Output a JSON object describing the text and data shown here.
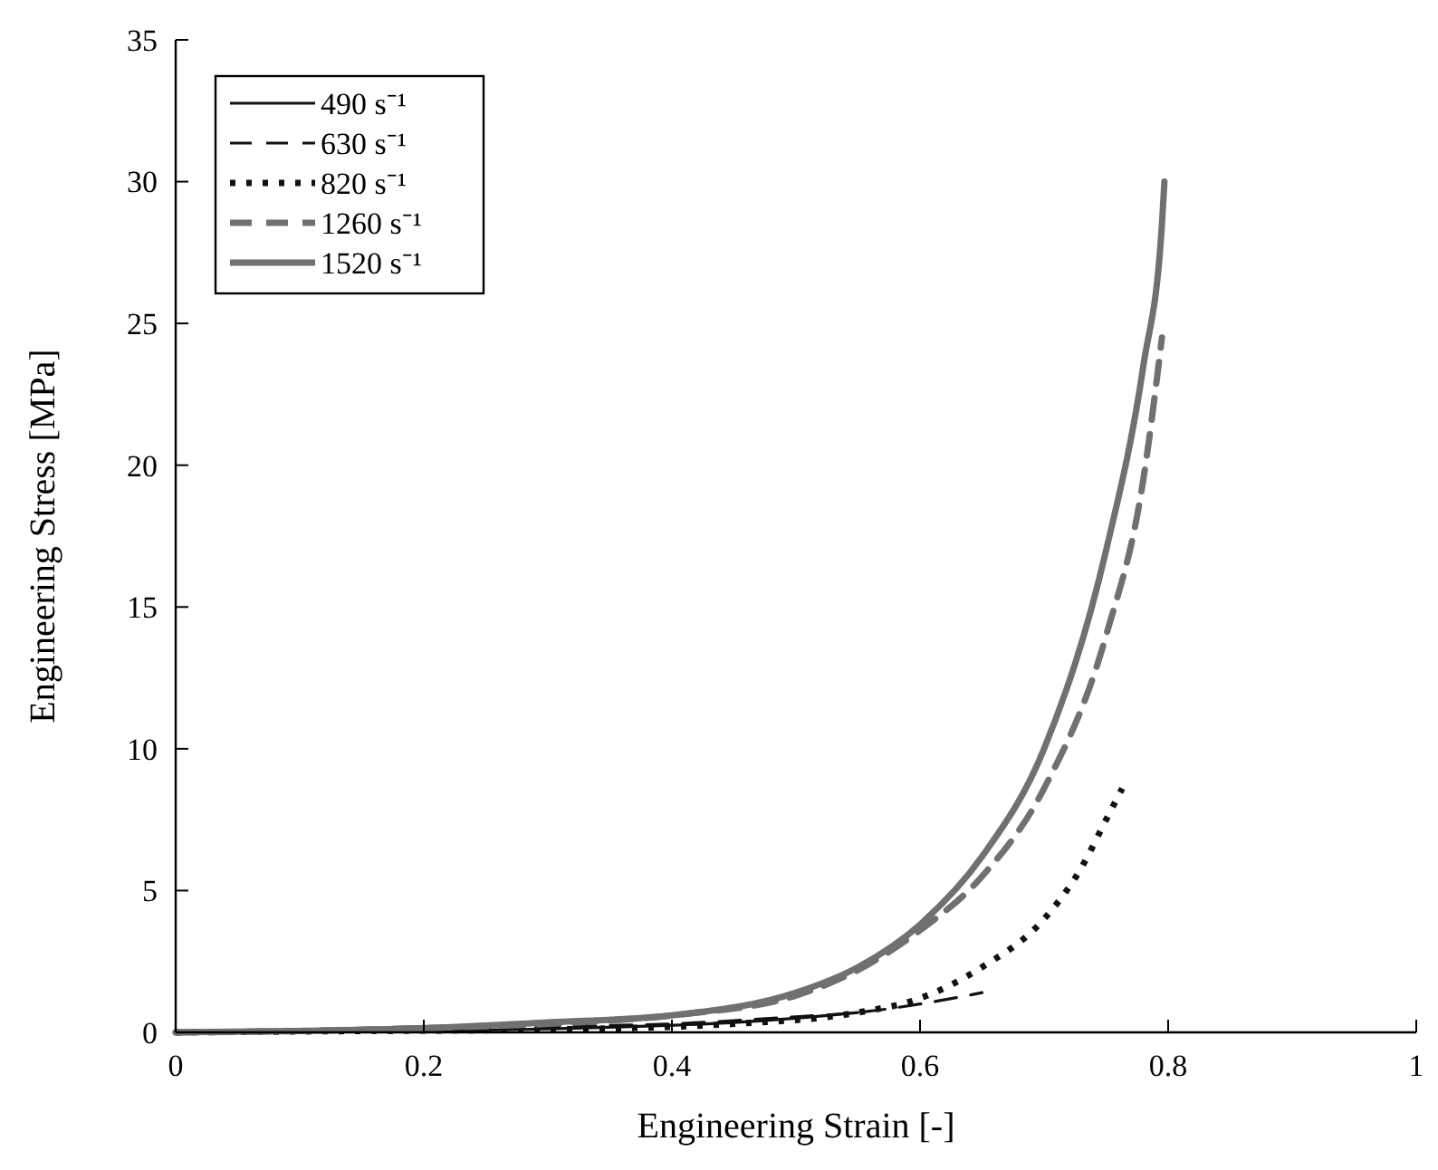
{
  "chart_data": {
    "type": "line",
    "xlabel": "Engineering Strain [-]",
    "ylabel": "Engineering Stress [MPa]",
    "xlim": [
      0,
      1
    ],
    "ylim": [
      0,
      35
    ],
    "xticks": [
      0,
      0.2,
      0.4,
      0.6,
      0.8,
      1
    ],
    "yticks": [
      0,
      5,
      10,
      15,
      20,
      25,
      30,
      35
    ],
    "grid": false,
    "legend": "top left",
    "series": [
      {
        "name": "490 s⁻¹",
        "color": "#111111",
        "line_style": "solid",
        "x": [
          0,
          0.1,
          0.2,
          0.3,
          0.4,
          0.45,
          0.5,
          0.55
        ],
        "values": [
          0,
          0.03,
          0.05,
          0.12,
          0.25,
          0.35,
          0.5,
          0.7
        ]
      },
      {
        "name": "630 s⁻¹",
        "color": "#111111",
        "line_style": "dashed",
        "x": [
          0,
          0.1,
          0.2,
          0.3,
          0.4,
          0.5,
          0.55,
          0.6,
          0.65
        ],
        "values": [
          0,
          0.05,
          0.1,
          0.2,
          0.3,
          0.55,
          0.7,
          1.0,
          1.4
        ]
      },
      {
        "name": "820 s⁻¹",
        "color": "#111111",
        "line_style": "dotted",
        "x": [
          0,
          0.15,
          0.3,
          0.45,
          0.55,
          0.6,
          0.65,
          0.7,
          0.73,
          0.75,
          0.763
        ],
        "values": [
          0,
          0.05,
          0.1,
          0.3,
          0.7,
          1.2,
          2.3,
          4,
          5.8,
          7.5,
          8.6
        ]
      },
      {
        "name": "1260 s⁻¹",
        "color": "#707070",
        "line_style": "dashed",
        "x": [
          0,
          0.1,
          0.2,
          0.3,
          0.4,
          0.5,
          0.55,
          0.6,
          0.65,
          0.7,
          0.75,
          0.78,
          0.795
        ],
        "values": [
          0,
          0.05,
          0.15,
          0.3,
          0.6,
          1.3,
          2.2,
          3.6,
          5.5,
          8.6,
          14,
          19.5,
          24.5
        ]
      },
      {
        "name": "1520 s⁻¹",
        "color": "#707070",
        "line_style": "solid",
        "x": [
          0,
          0.1,
          0.2,
          0.3,
          0.4,
          0.5,
          0.55,
          0.6,
          0.65,
          0.7,
          0.75,
          0.78,
          0.795,
          0.797
        ],
        "values": [
          0,
          0.05,
          0.15,
          0.35,
          0.6,
          1.4,
          2.3,
          3.8,
          6.2,
          10,
          17,
          23.5,
          28.5,
          30
        ]
      }
    ]
  }
}
